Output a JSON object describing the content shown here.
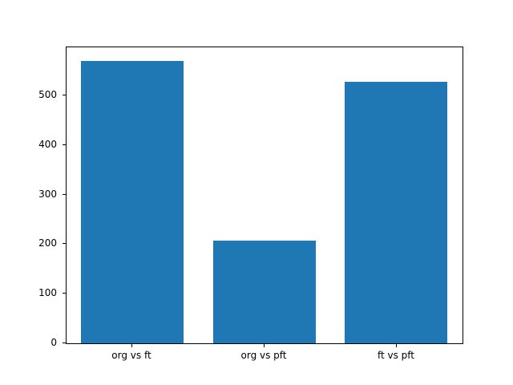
{
  "chart_data": {
    "type": "bar",
    "categories": [
      "org vs ft",
      "org vs pft",
      "ft vs pft"
    ],
    "values": [
      570,
      207,
      527
    ],
    "title": "",
    "xlabel": "",
    "ylabel": "",
    "ylim": [
      0,
      597
    ],
    "yticks": [
      0,
      100,
      200,
      300,
      400,
      500
    ],
    "ytick_labels": [
      "0",
      "100",
      "200",
      "300",
      "400",
      "500"
    ],
    "bar_color": "#1f77b4",
    "axes_color": "#000000",
    "background_color": "#ffffff",
    "grid": false,
    "legend": null,
    "bar_width_fraction": 0.26
  }
}
